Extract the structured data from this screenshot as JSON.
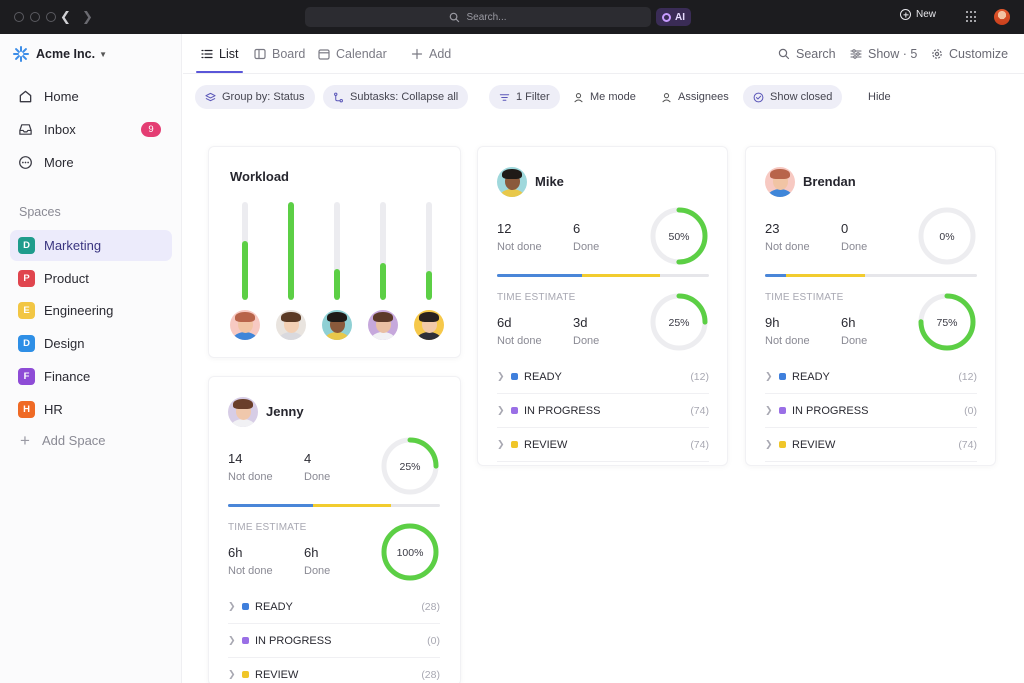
{
  "titlebar": {
    "search_placeholder": "Search...",
    "ai_label": "AI",
    "new_label": "New"
  },
  "sidebar": {
    "workspace_name": "Acme Inc.",
    "nav": [
      {
        "label": "Home",
        "icon": "home-icon"
      },
      {
        "label": "Inbox",
        "icon": "inbox-icon",
        "badge": "9"
      },
      {
        "label": "More",
        "icon": "more-icon"
      }
    ],
    "spaces_heading": "Spaces",
    "spaces": [
      {
        "letter": "D",
        "label": "Marketing",
        "color": "#1f9c8c",
        "active": true
      },
      {
        "letter": "P",
        "label": "Product",
        "color": "#e0454e"
      },
      {
        "letter": "E",
        "label": "Engineering",
        "color": "#f2c644"
      },
      {
        "letter": "D",
        "label": "Design",
        "color": "#2e8fe6"
      },
      {
        "letter": "F",
        "label": "Finance",
        "color": "#8e4cd6"
      },
      {
        "letter": "H",
        "label": "HR",
        "color": "#ef6a25"
      }
    ],
    "add_space": "Add Space"
  },
  "header": {
    "tabs": [
      {
        "label": "List",
        "icon": "list-icon",
        "active": true
      },
      {
        "label": "Board",
        "icon": "board-icon"
      },
      {
        "label": "Calendar",
        "icon": "calendar-icon"
      },
      {
        "label": "Add",
        "icon": "plus-icon"
      }
    ],
    "tools": [
      {
        "label": "Search",
        "icon": "search-icon"
      },
      {
        "label": "Show · 5",
        "icon": "sliders-icon"
      },
      {
        "label": "Customize",
        "icon": "gear-icon"
      }
    ]
  },
  "filters": [
    {
      "label": "Group by: Status",
      "icon": "layers-icon",
      "filled": true
    },
    {
      "label": "Subtasks: Collapse all",
      "icon": "subtasks-icon",
      "filled": true
    },
    {
      "label": "1 Filter",
      "icon": "filter-icon",
      "filled": true
    },
    {
      "label": "Me mode",
      "icon": "person-icon",
      "filled": false
    },
    {
      "label": "Assignees",
      "icon": "person-icon",
      "filled": false
    },
    {
      "label": "Show closed",
      "icon": "check-circle-icon",
      "filled": true
    },
    {
      "label": "Hide",
      "icon": "",
      "filled": false
    }
  ],
  "workload": {
    "title": "Workload",
    "bars": [
      {
        "fill": 0.6,
        "avatar": "avatar-1"
      },
      {
        "fill": 1.0,
        "avatar": "avatar-2"
      },
      {
        "fill": 0.32,
        "avatar": "avatar-3"
      },
      {
        "fill": 0.38,
        "avatar": "avatar-4"
      },
      {
        "fill": 0.3,
        "avatar": "avatar-5"
      }
    ]
  },
  "people": [
    {
      "name": "Mike",
      "not_done": "12",
      "not_done_label": "Not done",
      "done": "6",
      "done_label": "Done",
      "task_pct": 0.5,
      "task_pct_label": "50%",
      "bar": [
        {
          "frac": 0.4,
          "color": "#4a86d8"
        },
        {
          "frac": 0.0,
          "color": "#9a78e0"
        },
        {
          "frac": 0.37,
          "color": "#f2cc2f"
        }
      ],
      "time_heading": "TIME ESTIMATE",
      "time_not_done": "6d",
      "time_done": "3d",
      "time_pct": 0.25,
      "time_pct_label": "25%",
      "statuses": [
        {
          "label": "READY",
          "count": "(12)",
          "color": "#3f7fdc"
        },
        {
          "label": "IN PROGRESS",
          "count": "(74)",
          "color": "#9a6fe6"
        },
        {
          "label": "REVIEW",
          "count": "(74)",
          "color": "#f0c629"
        }
      ]
    },
    {
      "name": "Brendan",
      "not_done": "23",
      "not_done_label": "Not done",
      "done": "0",
      "done_label": "Done",
      "task_pct": 0.0,
      "task_pct_label": "0%",
      "bar": [
        {
          "frac": 0.1,
          "color": "#4a86d8"
        },
        {
          "frac": 0.37,
          "color": "#f2cc2f"
        }
      ],
      "time_heading": "TIME ESTIMATE",
      "time_not_done": "9h",
      "time_done": "6h",
      "time_pct": 0.75,
      "time_pct_label": "75%",
      "statuses": [
        {
          "label": "READY",
          "count": "(12)",
          "color": "#3f7fdc"
        },
        {
          "label": "IN PROGRESS",
          "count": "(0)",
          "color": "#9a6fe6"
        },
        {
          "label": "REVIEW",
          "count": "(74)",
          "color": "#f0c629"
        }
      ]
    },
    {
      "name": "Jenny",
      "not_done": "14",
      "not_done_label": "Not done",
      "done": "4",
      "done_label": "Done",
      "task_pct": 0.25,
      "task_pct_label": "25%",
      "bar": [
        {
          "frac": 0.4,
          "color": "#4a86d8"
        },
        {
          "frac": 0.37,
          "color": "#f2cc2f"
        }
      ],
      "time_heading": "TIME ESTIMATE",
      "time_not_done": "6h",
      "time_done": "6h",
      "time_pct": 1.0,
      "time_pct_label": "100%",
      "statuses": [
        {
          "label": "READY",
          "count": "(28)",
          "color": "#3f7fdc"
        },
        {
          "label": "IN PROGRESS",
          "count": "(0)",
          "color": "#9a6fe6"
        },
        {
          "label": "REVIEW",
          "count": "(28)",
          "color": "#f0c629"
        }
      ]
    }
  ],
  "colors": {
    "accent": "#5a56d8",
    "success": "#5ccf45",
    "badge": "#e43d73"
  }
}
